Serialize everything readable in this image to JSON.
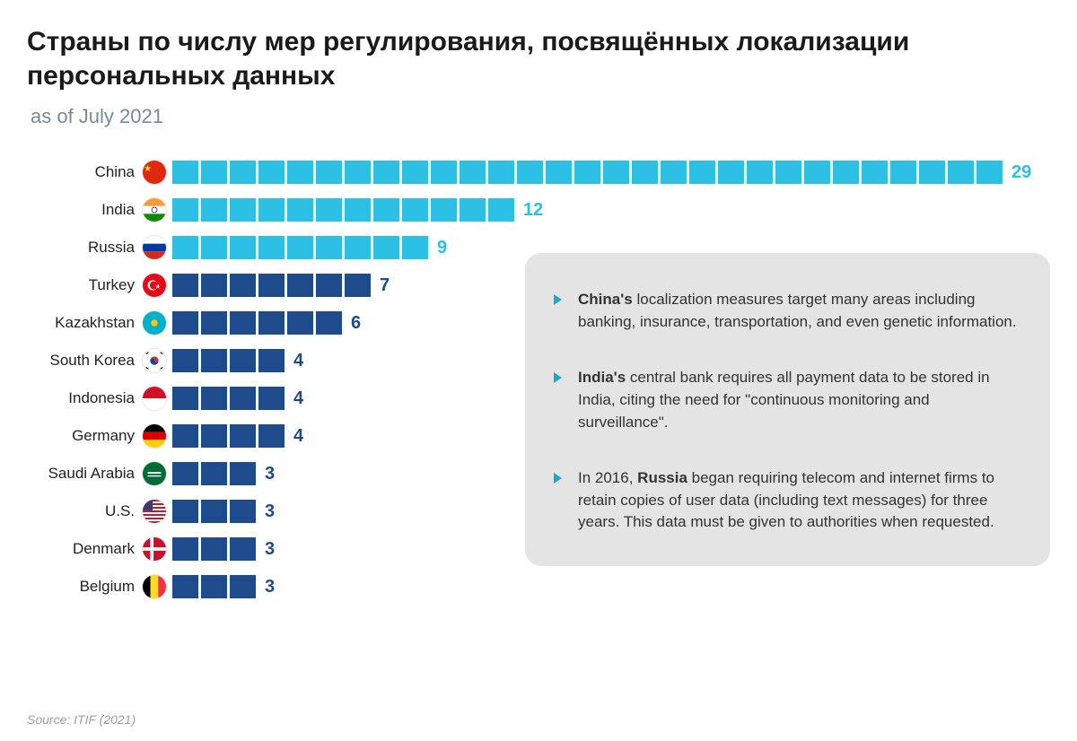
{
  "title": "Страны по числу мер регулирования, посвящённых локализации персональных данных",
  "subtitle": "as of July 2021",
  "colors": {
    "light": "#2cc0e4",
    "dark": "#1e4b8c",
    "bg": "#ffffff",
    "info_bg": "#e4e4e4",
    "bullet": "#1aa6d6"
  },
  "block": {
    "w": 29,
    "h": 26,
    "gap": 3
  },
  "rows": [
    {
      "country": "China",
      "value": 29,
      "color": "light",
      "flag": "cn"
    },
    {
      "country": "India",
      "value": 12,
      "color": "light",
      "flag": "in"
    },
    {
      "country": "Russia",
      "value": 9,
      "color": "light",
      "flag": "ru"
    },
    {
      "country": "Turkey",
      "value": 7,
      "color": "dark",
      "flag": "tr"
    },
    {
      "country": "Kazakhstan",
      "value": 6,
      "color": "dark",
      "flag": "kz"
    },
    {
      "country": "South Korea",
      "value": 4,
      "color": "dark",
      "flag": "kr"
    },
    {
      "country": "Indonesia",
      "value": 4,
      "color": "dark",
      "flag": "id"
    },
    {
      "country": "Germany",
      "value": 4,
      "color": "dark",
      "flag": "de"
    },
    {
      "country": "Saudi Arabia",
      "value": 3,
      "color": "dark",
      "flag": "sa"
    },
    {
      "country": "U.S.",
      "value": 3,
      "color": "dark",
      "flag": "us"
    },
    {
      "country": "Denmark",
      "value": 3,
      "color": "dark",
      "flag": "dk"
    },
    {
      "country": "Belgium",
      "value": 3,
      "color": "dark",
      "flag": "be"
    }
  ],
  "info": [
    "<b>China's</b> localization measures target many areas including banking, insurance, transportation, and even genetic information.",
    "<b>India's</b> central bank requires all payment data to be stored in India, citing the need for \"continuous monitoring and surveillance\".",
    "In 2016, <b>Russia</b> began requiring telecom and internet firms to retain copies of user data (including text messages) for three years. This data must be given to authorities when requested."
  ],
  "source": "Source: ITIF (2021)"
}
